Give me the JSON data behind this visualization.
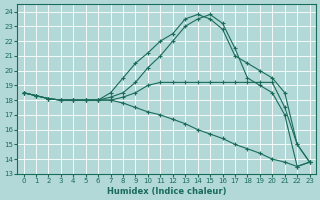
{
  "xlabel": "Humidex (Indice chaleur)",
  "bg_color": "#b2d8d8",
  "grid_color": "#ffffff",
  "line_color": "#1a6b5a",
  "xlim": [
    -0.5,
    23.5
  ],
  "ylim": [
    13,
    24.5
  ],
  "xticks": [
    0,
    1,
    2,
    3,
    4,
    5,
    6,
    7,
    8,
    9,
    10,
    11,
    12,
    13,
    14,
    15,
    16,
    17,
    18,
    19,
    20,
    21,
    22,
    23
  ],
  "yticks": [
    13,
    14,
    15,
    16,
    17,
    18,
    19,
    20,
    21,
    22,
    23,
    24
  ],
  "lines": [
    {
      "x": [
        0,
        1,
        2,
        3,
        4,
        5,
        6,
        7,
        8,
        9,
        10,
        11,
        12,
        13,
        14,
        15,
        16,
        17,
        18,
        19,
        20,
        21,
        22,
        23
      ],
      "y": [
        18.5,
        18.3,
        18.1,
        18.0,
        18.0,
        18.0,
        18.0,
        18.5,
        19.5,
        20.5,
        21.2,
        22.0,
        22.5,
        23.5,
        23.8,
        23.5,
        22.8,
        21.0,
        20.5,
        20.0,
        19.5,
        18.5,
        15.0,
        13.8
      ]
    },
    {
      "x": [
        0,
        1,
        2,
        3,
        4,
        5,
        6,
        7,
        8,
        9,
        10,
        11,
        12,
        13,
        14,
        15,
        16,
        17,
        18,
        19,
        20,
        21,
        22,
        23
      ],
      "y": [
        18.5,
        18.3,
        18.1,
        18.0,
        18.0,
        18.0,
        18.0,
        18.2,
        18.5,
        19.2,
        20.2,
        21.0,
        22.0,
        23.0,
        23.5,
        23.8,
        23.2,
        21.5,
        19.5,
        19.0,
        18.5,
        17.0,
        13.5,
        13.8
      ]
    },
    {
      "x": [
        0,
        1,
        2,
        3,
        4,
        5,
        6,
        7,
        8,
        9,
        10,
        11,
        12,
        13,
        14,
        15,
        16,
        17,
        18,
        19,
        20,
        21,
        22,
        23
      ],
      "y": [
        18.5,
        18.3,
        18.1,
        18.0,
        18.0,
        18.0,
        18.0,
        18.0,
        18.2,
        18.5,
        19.0,
        19.2,
        19.2,
        19.2,
        19.2,
        19.2,
        19.2,
        19.2,
        19.2,
        19.2,
        19.2,
        17.5,
        15.0,
        13.8
      ]
    },
    {
      "x": [
        0,
        1,
        2,
        3,
        4,
        5,
        6,
        7,
        8,
        9,
        10,
        11,
        12,
        13,
        14,
        15,
        16,
        17,
        18,
        19,
        20,
        21,
        22,
        23
      ],
      "y": [
        18.5,
        18.3,
        18.1,
        18.0,
        18.0,
        18.0,
        18.0,
        18.0,
        17.8,
        17.5,
        17.2,
        17.0,
        16.7,
        16.4,
        16.0,
        15.7,
        15.4,
        15.0,
        14.7,
        14.4,
        14.0,
        13.8,
        13.5,
        13.8
      ]
    }
  ]
}
